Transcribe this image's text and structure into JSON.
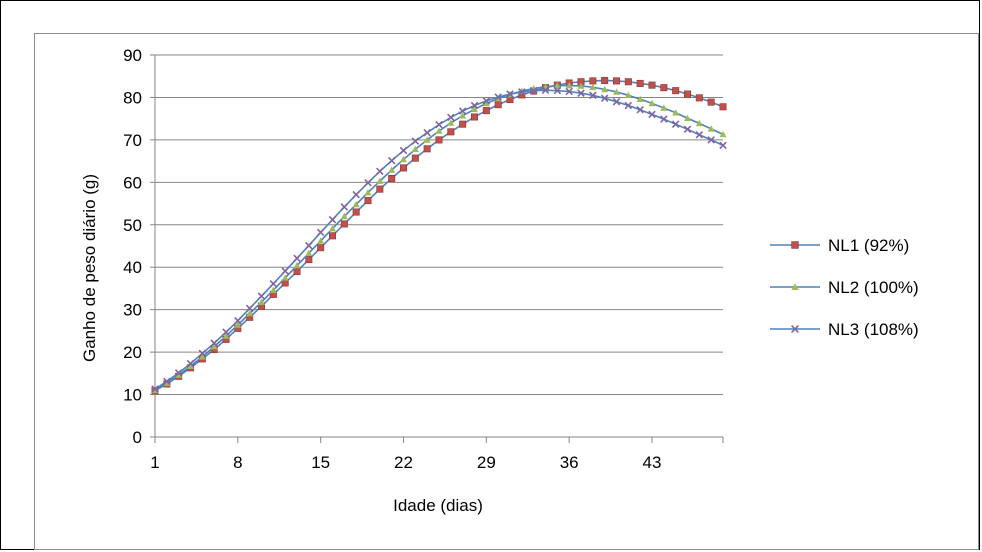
{
  "chart_data": {
    "type": "line",
    "xlabel": "Idade (dias)",
    "ylabel": "Ganho de peso diário (g)",
    "xlim": [
      1,
      49
    ],
    "ylim": [
      0,
      90
    ],
    "x_ticks": [
      "1",
      "8",
      "15",
      "22",
      "29",
      "36",
      "43"
    ],
    "y_ticks": [
      "0",
      "10",
      "20",
      "30",
      "40",
      "50",
      "60",
      "70",
      "80",
      "90"
    ],
    "grid": "horizontal",
    "legend": "right",
    "x": [
      1,
      2,
      3,
      4,
      5,
      6,
      7,
      8,
      9,
      10,
      11,
      12,
      13,
      14,
      15,
      16,
      17,
      18,
      19,
      20,
      21,
      22,
      23,
      24,
      25,
      26,
      27,
      28,
      29,
      30,
      31,
      32,
      33,
      34,
      35,
      36,
      37,
      38,
      39,
      40,
      41,
      42,
      43,
      44,
      45,
      46,
      47,
      48,
      49
    ],
    "series": [
      {
        "name": "NL1 (92%)",
        "color": "#4f81bd",
        "marker_color": "#c0504d",
        "marker": "square",
        "values": [
          10.9,
          12.5,
          14.3,
          16.3,
          18.4,
          20.6,
          23.0,
          25.6,
          28.2,
          30.8,
          33.6,
          36.3,
          39.0,
          41.8,
          44.6,
          47.4,
          50.2,
          53.0,
          55.7,
          58.4,
          60.9,
          63.4,
          65.7,
          67.9,
          70.0,
          71.9,
          73.7,
          75.4,
          76.9,
          78.3,
          79.5,
          80.6,
          81.5,
          82.3,
          82.9,
          83.4,
          83.7,
          83.9,
          84.0,
          83.9,
          83.7,
          83.3,
          82.9,
          82.3,
          81.6,
          80.8,
          79.9,
          78.9,
          77.8
        ]
      },
      {
        "name": "NL2 (100%)",
        "color": "#4f81bd",
        "marker_color": "#9bbb59",
        "marker": "triangle",
        "values": [
          11.0,
          12.7,
          14.6,
          16.7,
          18.9,
          21.3,
          23.8,
          26.4,
          29.1,
          31.8,
          34.6,
          37.5,
          40.4,
          43.3,
          46.2,
          49.1,
          52.0,
          54.8,
          57.6,
          60.3,
          62.9,
          65.4,
          67.8,
          70.0,
          72.1,
          74.0,
          75.7,
          77.2,
          78.6,
          79.7,
          80.7,
          81.5,
          82.1,
          82.5,
          82.8,
          82.8,
          82.7,
          82.4,
          81.9,
          81.3,
          80.5,
          79.6,
          78.6,
          77.5,
          76.4,
          75.1,
          73.9,
          72.6,
          71.3
        ]
      },
      {
        "name": "NL3 (108%)",
        "color": "#4f81bd",
        "marker_color": "#8064a2",
        "marker": "x",
        "values": [
          11.3,
          13.1,
          15.1,
          17.3,
          19.7,
          22.1,
          24.7,
          27.4,
          30.3,
          33.2,
          36.1,
          39.1,
          42.1,
          45.1,
          48.2,
          51.2,
          54.2,
          57.1,
          59.9,
          62.6,
          65.1,
          67.5,
          69.7,
          71.7,
          73.6,
          75.3,
          76.8,
          78.1,
          79.2,
          80.1,
          80.8,
          81.3,
          81.6,
          81.7,
          81.6,
          81.4,
          81.0,
          80.5,
          79.8,
          79.0,
          78.1,
          77.1,
          76.0,
          74.9,
          73.7,
          72.5,
          71.2,
          70.0,
          68.7
        ]
      }
    ]
  }
}
